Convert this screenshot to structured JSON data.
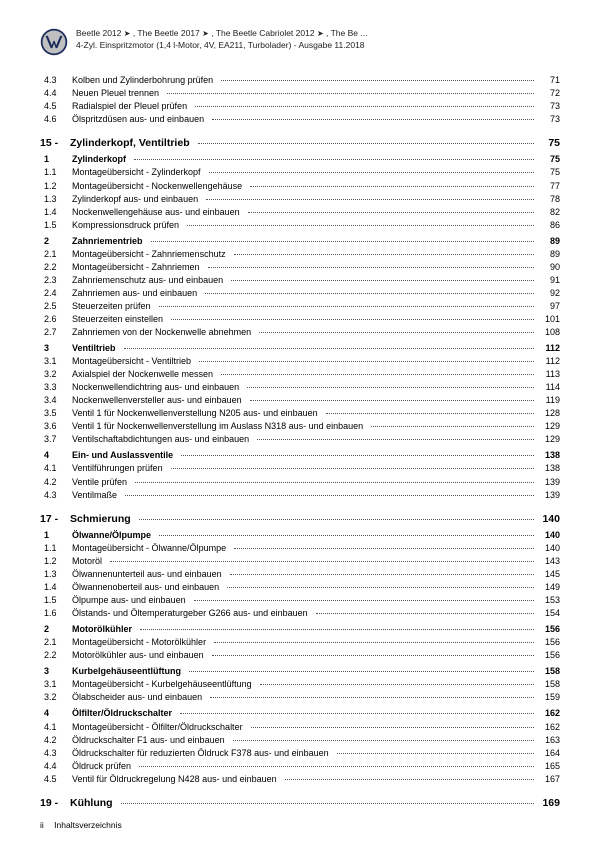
{
  "header": {
    "line1_prefix": "Beetle 2012",
    "line1_mid1": " , The Beetle 2017",
    "line1_mid2": " , The Beetle Cabriolet 2012",
    "line1_suffix": " , The Be ...",
    "line2": "4-Zyl. Einspritzmotor (1,4 l-Motor, 4V, EA211, Turbolader) - Ausgabe 11.2018",
    "arrow": "➤"
  },
  "logo": {
    "bg": "#c0c0c0",
    "ring": "#1a2b5c",
    "letter": "#1a2b5c"
  },
  "toc": [
    {
      "type": "sub",
      "num": "4.3",
      "label": "Kolben und Zylinderbohrung prüfen",
      "page": "71"
    },
    {
      "type": "sub",
      "num": "4.4",
      "label": "Neuen Pleuel trennen",
      "page": "72"
    },
    {
      "type": "sub",
      "num": "4.5",
      "label": "Radialspiel der Pleuel prüfen",
      "page": "73"
    },
    {
      "type": "sub",
      "num": "4.6",
      "label": "Ölspritzdüsen aus- und einbauen",
      "page": "73"
    },
    {
      "type": "chapter",
      "num": "15 -",
      "label": "Zylinderkopf, Ventiltrieb",
      "page": "75"
    },
    {
      "type": "sec",
      "num": "1",
      "label": "Zylinderkopf",
      "page": "75"
    },
    {
      "type": "sub",
      "num": "1.1",
      "label": "Montageübersicht - Zylinderkopf",
      "page": "75"
    },
    {
      "type": "sub",
      "num": "1.2",
      "label": "Montageübersicht - Nockenwellengehäuse",
      "page": "77"
    },
    {
      "type": "sub",
      "num": "1.3",
      "label": "Zylinderkopf aus- und einbauen",
      "page": "78"
    },
    {
      "type": "sub",
      "num": "1.4",
      "label": "Nockenwellengehäuse aus- und einbauen",
      "page": "82"
    },
    {
      "type": "sub",
      "num": "1.5",
      "label": "Kompressionsdruck prüfen",
      "page": "86"
    },
    {
      "type": "gap"
    },
    {
      "type": "sec",
      "num": "2",
      "label": "Zahnriementrieb",
      "page": "89"
    },
    {
      "type": "sub",
      "num": "2.1",
      "label": "Montageübersicht - Zahnriemenschutz",
      "page": "89"
    },
    {
      "type": "sub",
      "num": "2.2",
      "label": "Montageübersicht - Zahnriemen",
      "page": "90"
    },
    {
      "type": "sub",
      "num": "2.3",
      "label": "Zahnriemenschutz aus- und einbauen",
      "page": "91"
    },
    {
      "type": "sub",
      "num": "2.4",
      "label": "Zahnriemen aus- und einbauen",
      "page": "92"
    },
    {
      "type": "sub",
      "num": "2.5",
      "label": "Steuerzeiten prüfen",
      "page": "97"
    },
    {
      "type": "sub",
      "num": "2.6",
      "label": "Steuerzeiten einstellen",
      "page": "101"
    },
    {
      "type": "sub",
      "num": "2.7",
      "label": "Zahnriemen von der Nockenwelle abnehmen",
      "page": "108"
    },
    {
      "type": "gap"
    },
    {
      "type": "sec",
      "num": "3",
      "label": "Ventiltrieb",
      "page": "112"
    },
    {
      "type": "sub",
      "num": "3.1",
      "label": "Montageübersicht - Ventiltrieb",
      "page": "112"
    },
    {
      "type": "sub",
      "num": "3.2",
      "label": "Axialspiel der Nockenwelle messen",
      "page": "113"
    },
    {
      "type": "sub",
      "num": "3.3",
      "label": "Nockenwellendichtring aus- und einbauen",
      "page": "114"
    },
    {
      "type": "sub",
      "num": "3.4",
      "label": "Nockenwellenversteller aus- und einbauen",
      "page": "119"
    },
    {
      "type": "sub",
      "num": "3.5",
      "label": "Ventil 1 für Nockenwellenverstellung N205 aus- und einbauen",
      "page": "128"
    },
    {
      "type": "sub",
      "num": "3.6",
      "label": "Ventil 1 für Nockenwellenverstellung im Auslass N318 aus- und einbauen",
      "page": "129"
    },
    {
      "type": "sub",
      "num": "3.7",
      "label": "Ventilschaftabdichtungen aus- und einbauen",
      "page": "129"
    },
    {
      "type": "gap"
    },
    {
      "type": "sec",
      "num": "4",
      "label": "Ein- und Auslassventile",
      "page": "138"
    },
    {
      "type": "sub",
      "num": "4.1",
      "label": "Ventilführungen prüfen",
      "page": "138"
    },
    {
      "type": "sub",
      "num": "4.2",
      "label": "Ventile prüfen",
      "page": "139"
    },
    {
      "type": "sub",
      "num": "4.3",
      "label": "Ventilmaße",
      "page": "139"
    },
    {
      "type": "chapter",
      "num": "17 -",
      "label": "Schmierung",
      "page": "140"
    },
    {
      "type": "sec",
      "num": "1",
      "label": "Ölwanne/Ölpumpe",
      "page": "140"
    },
    {
      "type": "sub",
      "num": "1.1",
      "label": "Montageübersicht - Ölwanne/Ölpumpe",
      "page": "140"
    },
    {
      "type": "sub",
      "num": "1.2",
      "label": "Motoröl",
      "page": "143"
    },
    {
      "type": "sub",
      "num": "1.3",
      "label": "Ölwannenunterteil aus- und einbauen",
      "page": "145"
    },
    {
      "type": "sub",
      "num": "1.4",
      "label": "Ölwannenoberteil aus- und einbauen",
      "page": "149"
    },
    {
      "type": "sub",
      "num": "1.5",
      "label": "Ölpumpe aus- und einbauen",
      "page": "153"
    },
    {
      "type": "sub",
      "num": "1.6",
      "label": "Ölstands- und Öltemperaturgeber G266 aus- und einbauen",
      "page": "154"
    },
    {
      "type": "gap"
    },
    {
      "type": "sec",
      "num": "2",
      "label": "Motorölkühler",
      "page": "156"
    },
    {
      "type": "sub",
      "num": "2.1",
      "label": "Montageübersicht - Motorölkühler",
      "page": "156"
    },
    {
      "type": "sub",
      "num": "2.2",
      "label": "Motorölkühler aus- und einbauen",
      "page": "156"
    },
    {
      "type": "gap"
    },
    {
      "type": "sec",
      "num": "3",
      "label": "Kurbelgehäuseentlüftung",
      "page": "158"
    },
    {
      "type": "sub",
      "num": "3.1",
      "label": "Montageübersicht - Kurbelgehäuseentlüftung",
      "page": "158"
    },
    {
      "type": "sub",
      "num": "3.2",
      "label": "Ölabscheider aus- und einbauen",
      "page": "159"
    },
    {
      "type": "gap"
    },
    {
      "type": "sec",
      "num": "4",
      "label": "Ölfilter/Öldruckschalter",
      "page": "162"
    },
    {
      "type": "sub",
      "num": "4.1",
      "label": "Montageübersicht - Ölfilter/Öldruckschalter",
      "page": "162"
    },
    {
      "type": "sub",
      "num": "4.2",
      "label": "Öldruckschalter F1 aus- und einbauen",
      "page": "163"
    },
    {
      "type": "sub",
      "num": "4.3",
      "label": "Öldruckschalter für reduzierten Öldruck F378 aus- und einbauen",
      "page": "164"
    },
    {
      "type": "sub",
      "num": "4.4",
      "label": "Öldruck prüfen",
      "page": "165"
    },
    {
      "type": "sub",
      "num": "4.5",
      "label": "Ventil für Öldruckregelung N428 aus- und einbauen",
      "page": "167"
    },
    {
      "type": "chapter",
      "num": "19 -",
      "label": "Kühlung",
      "page": "169"
    }
  ],
  "footer": {
    "page_roman": "ii",
    "label": "Inhaltsverzeichnis"
  }
}
